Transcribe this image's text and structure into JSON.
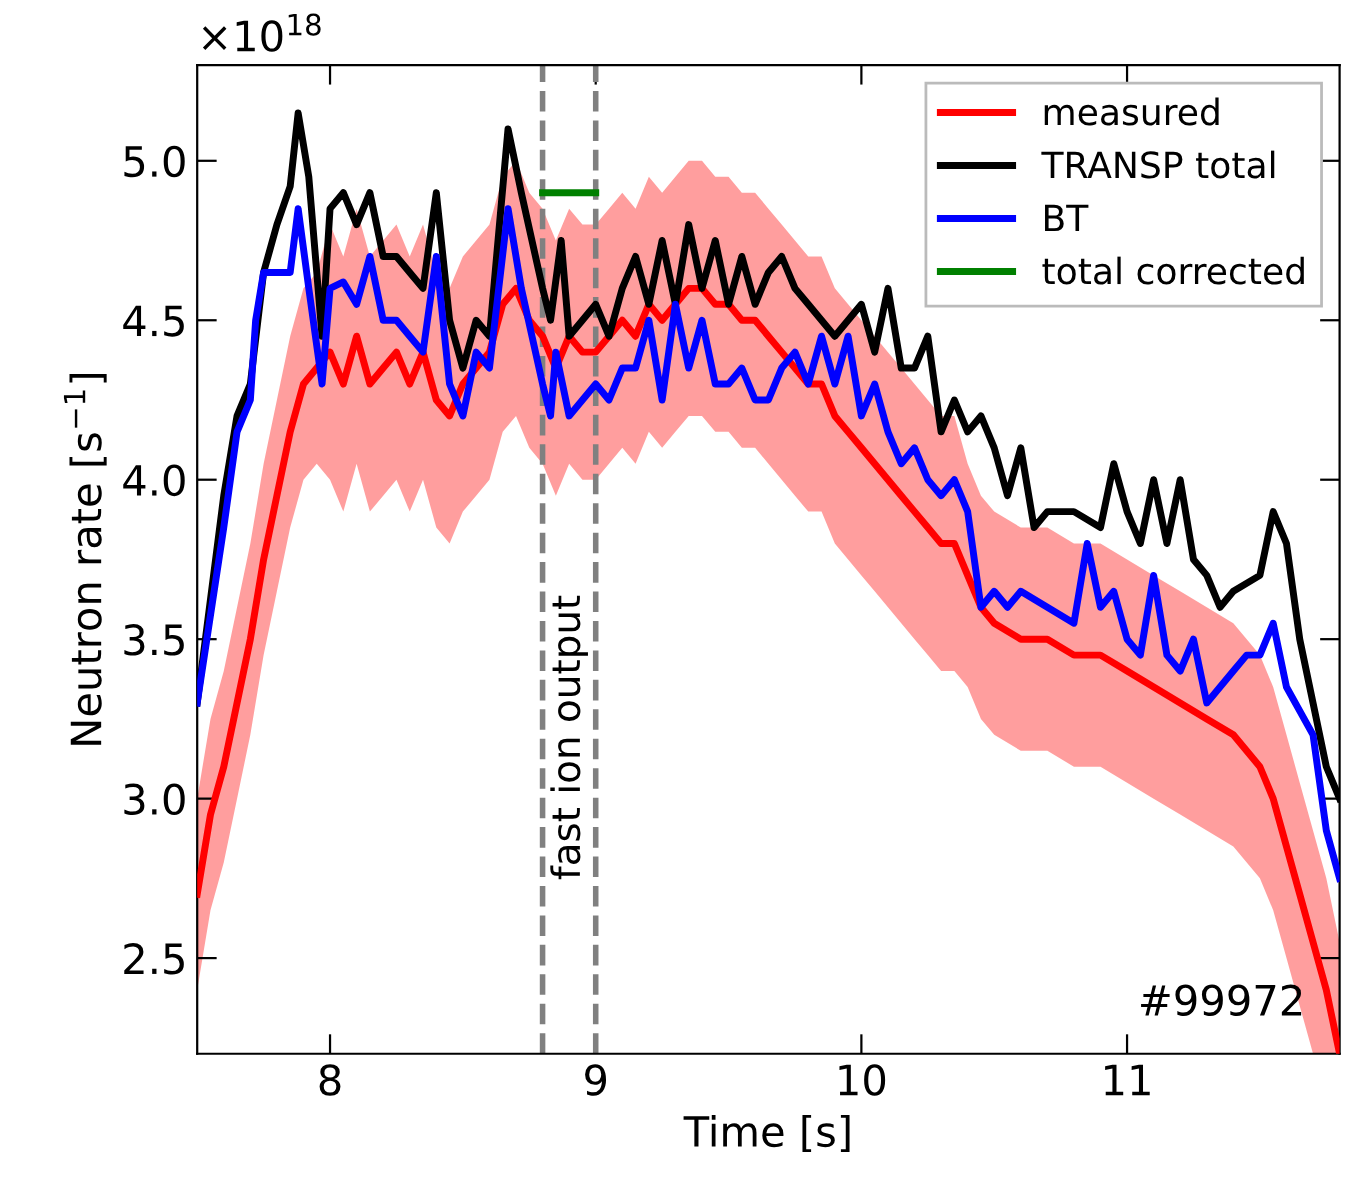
{
  "chart_data": {
    "type": "line",
    "xlabel": "Time [s]",
    "ylabel": "Neutron rate [s$^{−1}$]",
    "xlim": [
      7.5,
      11.8
    ],
    "ylim": [
      2.2,
      5.3
    ],
    "xticks": [
      8,
      9,
      10,
      11
    ],
    "yticks": [
      2.5,
      {
        "value": 3,
        "label": "3.0"
      },
      3.5,
      {
        "value": 4,
        "label": "4.0"
      },
      4.5,
      {
        "value": 5,
        "label": "5.0"
      }
    ],
    "grid": false,
    "legend": "top right",
    "line_style": "solid",
    "marker": "none",
    "series": [
      {
        "name": "measured",
        "color": "#ff0000",
        "x": [
          7.5,
          7.55,
          7.6,
          7.65,
          7.7,
          7.75,
          7.8,
          7.85,
          7.9,
          7.95,
          8.0,
          8.05,
          8.1,
          8.15,
          8.2,
          8.25,
          8.3,
          8.35,
          8.4,
          8.45,
          8.5,
          8.55,
          8.6,
          8.65,
          8.7,
          8.75,
          8.8,
          8.85,
          8.9,
          8.95,
          9.0,
          9.05,
          9.1,
          9.15,
          9.2,
          9.25,
          9.3,
          9.35,
          9.4,
          9.45,
          9.5,
          9.55,
          9.6,
          9.65,
          9.7,
          9.75,
          9.8,
          9.85,
          9.9,
          9.95,
          10.0,
          10.05,
          10.1,
          10.15,
          10.2,
          10.25,
          10.3,
          10.35,
          10.4,
          10.45,
          10.5,
          10.6,
          10.7,
          10.8,
          10.9,
          11.0,
          11.1,
          11.2,
          11.3,
          11.4,
          11.5,
          11.55,
          11.6,
          11.65,
          11.7,
          11.75,
          11.8
        ],
        "values": [
          2.7,
          2.95,
          3.1,
          3.3,
          3.5,
          3.75,
          3.95,
          4.15,
          4.3,
          4.35,
          4.4,
          4.3,
          4.45,
          4.3,
          4.35,
          4.4,
          4.3,
          4.4,
          4.25,
          4.2,
          4.3,
          4.35,
          4.4,
          4.55,
          4.6,
          4.5,
          4.45,
          4.35,
          4.45,
          4.4,
          4.4,
          4.45,
          4.5,
          4.45,
          4.55,
          4.5,
          4.55,
          4.6,
          4.6,
          4.55,
          4.55,
          4.5,
          4.5,
          4.45,
          4.4,
          4.35,
          4.3,
          4.3,
          4.2,
          4.15,
          4.1,
          4.05,
          4.0,
          3.95,
          3.9,
          3.85,
          3.8,
          3.8,
          3.7,
          3.6,
          3.55,
          3.5,
          3.5,
          3.45,
          3.45,
          3.4,
          3.35,
          3.3,
          3.25,
          3.2,
          3.1,
          3.0,
          2.85,
          2.7,
          2.55,
          2.4,
          2.2
        ],
        "upper": [
          3.0,
          3.25,
          3.4,
          3.6,
          3.8,
          4.05,
          4.25,
          4.45,
          4.6,
          4.65,
          4.8,
          4.7,
          4.85,
          4.7,
          4.75,
          4.8,
          4.7,
          4.8,
          4.65,
          4.6,
          4.7,
          4.75,
          4.8,
          4.95,
          5.0,
          4.9,
          4.85,
          4.75,
          4.85,
          4.8,
          4.8,
          4.85,
          4.9,
          4.85,
          4.95,
          4.9,
          4.95,
          5.0,
          5.0,
          4.95,
          4.95,
          4.9,
          4.9,
          4.85,
          4.8,
          4.75,
          4.7,
          4.7,
          4.6,
          4.55,
          4.5,
          4.45,
          4.4,
          4.35,
          4.3,
          4.25,
          4.2,
          4.2,
          4.05,
          3.95,
          3.9,
          3.85,
          3.85,
          3.8,
          3.8,
          3.75,
          3.7,
          3.65,
          3.6,
          3.55,
          3.45,
          3.35,
          3.2,
          3.05,
          2.9,
          2.75,
          2.55
        ],
        "lower": [
          2.4,
          2.65,
          2.8,
          3.0,
          3.2,
          3.45,
          3.65,
          3.85,
          4.0,
          4.05,
          4.0,
          3.9,
          4.05,
          3.9,
          3.95,
          4.0,
          3.9,
          4.0,
          3.85,
          3.8,
          3.9,
          3.95,
          4.0,
          4.15,
          4.2,
          4.1,
          4.05,
          3.95,
          4.05,
          4.0,
          4.0,
          4.05,
          4.1,
          4.05,
          4.15,
          4.1,
          4.15,
          4.2,
          4.2,
          4.15,
          4.15,
          4.1,
          4.1,
          4.05,
          4.0,
          3.95,
          3.9,
          3.9,
          3.8,
          3.75,
          3.7,
          3.65,
          3.6,
          3.55,
          3.5,
          3.45,
          3.4,
          3.4,
          3.35,
          3.25,
          3.2,
          3.15,
          3.15,
          3.1,
          3.1,
          3.05,
          3.0,
          2.95,
          2.9,
          2.85,
          2.75,
          2.65,
          2.5,
          2.35,
          2.2,
          2.2,
          2.2
        ]
      },
      {
        "name": "TRANSP total",
        "color": "#000000",
        "x": [
          7.5,
          7.6,
          7.65,
          7.7,
          7.75,
          7.8,
          7.85,
          7.88,
          7.92,
          7.97,
          8.0,
          8.05,
          8.1,
          8.15,
          8.2,
          8.25,
          8.3,
          8.35,
          8.4,
          8.45,
          8.5,
          8.55,
          8.6,
          8.67,
          8.72,
          8.8,
          8.83,
          8.87,
          8.9,
          8.95,
          9.0,
          9.05,
          9.1,
          9.15,
          9.2,
          9.25,
          9.3,
          9.35,
          9.4,
          9.45,
          9.5,
          9.55,
          9.6,
          9.65,
          9.7,
          9.75,
          9.8,
          9.85,
          9.9,
          10.0,
          10.05,
          10.1,
          10.15,
          10.2,
          10.25,
          10.3,
          10.35,
          10.4,
          10.45,
          10.5,
          10.55,
          10.6,
          10.65,
          10.7,
          10.8,
          10.9,
          10.95,
          11.0,
          11.05,
          11.1,
          11.15,
          11.2,
          11.25,
          11.3,
          11.35,
          11.4,
          11.5,
          11.55,
          11.6,
          11.65,
          11.7,
          11.75,
          11.8
        ],
        "values": [
          3.3,
          3.95,
          4.2,
          4.3,
          4.65,
          4.8,
          4.92,
          5.15,
          4.95,
          4.45,
          4.85,
          4.9,
          4.8,
          4.9,
          4.7,
          4.7,
          4.65,
          4.6,
          4.9,
          4.5,
          4.35,
          4.5,
          4.45,
          5.1,
          4.9,
          4.6,
          4.5,
          4.75,
          4.45,
          4.5,
          4.55,
          4.45,
          4.6,
          4.7,
          4.55,
          4.75,
          4.55,
          4.8,
          4.6,
          4.75,
          4.55,
          4.7,
          4.55,
          4.65,
          4.7,
          4.6,
          4.55,
          4.5,
          4.45,
          4.55,
          4.4,
          4.6,
          4.35,
          4.35,
          4.45,
          4.15,
          4.25,
          4.15,
          4.2,
          4.1,
          3.95,
          4.1,
          3.85,
          3.9,
          3.9,
          3.85,
          4.05,
          3.9,
          3.8,
          4.0,
          3.8,
          4.0,
          3.75,
          3.7,
          3.6,
          3.65,
          3.7,
          3.9,
          3.8,
          3.5,
          3.3,
          3.1,
          3.0
        ]
      },
      {
        "name": "BT",
        "color": "#0000ff",
        "x": [
          7.5,
          7.6,
          7.65,
          7.7,
          7.72,
          7.75,
          7.8,
          7.85,
          7.88,
          7.92,
          7.97,
          8.0,
          8.05,
          8.1,
          8.15,
          8.2,
          8.25,
          8.3,
          8.35,
          8.4,
          8.45,
          8.5,
          8.55,
          8.6,
          8.67,
          8.72,
          8.8,
          8.83,
          8.85,
          8.9,
          8.95,
          9.0,
          9.05,
          9.1,
          9.15,
          9.2,
          9.25,
          9.3,
          9.35,
          9.4,
          9.45,
          9.5,
          9.55,
          9.6,
          9.65,
          9.7,
          9.75,
          9.8,
          9.85,
          9.9,
          9.95,
          10.0,
          10.05,
          10.1,
          10.15,
          10.2,
          10.25,
          10.3,
          10.35,
          10.4,
          10.45,
          10.5,
          10.55,
          10.6,
          10.7,
          10.8,
          10.85,
          10.9,
          10.95,
          11.0,
          11.05,
          11.1,
          11.15,
          11.2,
          11.25,
          11.3,
          11.4,
          11.45,
          11.5,
          11.55,
          11.6,
          11.7,
          11.75,
          11.8
        ],
        "values": [
          3.3,
          3.85,
          4.15,
          4.25,
          4.5,
          4.65,
          4.65,
          4.65,
          4.85,
          4.6,
          4.3,
          4.6,
          4.62,
          4.55,
          4.7,
          4.5,
          4.5,
          4.45,
          4.4,
          4.7,
          4.3,
          4.2,
          4.4,
          4.35,
          4.85,
          4.6,
          4.3,
          4.2,
          4.4,
          4.2,
          4.25,
          4.3,
          4.25,
          4.35,
          4.35,
          4.5,
          4.25,
          4.55,
          4.35,
          4.5,
          4.3,
          4.3,
          4.35,
          4.25,
          4.25,
          4.35,
          4.4,
          4.3,
          4.45,
          4.3,
          4.45,
          4.2,
          4.3,
          4.15,
          4.05,
          4.1,
          4.0,
          3.95,
          4.0,
          3.9,
          3.6,
          3.65,
          3.6,
          3.65,
          3.6,
          3.55,
          3.8,
          3.6,
          3.65,
          3.5,
          3.45,
          3.7,
          3.45,
          3.4,
          3.5,
          3.3,
          3.4,
          3.45,
          3.45,
          3.55,
          3.35,
          3.2,
          2.9,
          2.75
        ]
      },
      {
        "name": "total corrected",
        "color": "#008000",
        "x": [
          8.8,
          9.0
        ],
        "values": [
          4.9,
          4.9
        ]
      }
    ],
    "ref_lines": [
      {
        "axis": "x",
        "value": 8.8,
        "color": "#808080",
        "line_style": "dashed"
      },
      {
        "axis": "x",
        "value": 9.0,
        "color": "#808080",
        "line_style": "dashed"
      }
    ],
    "annotations": [
      "×10$^{18}$",
      "fast ion output",
      "#99972"
    ]
  }
}
